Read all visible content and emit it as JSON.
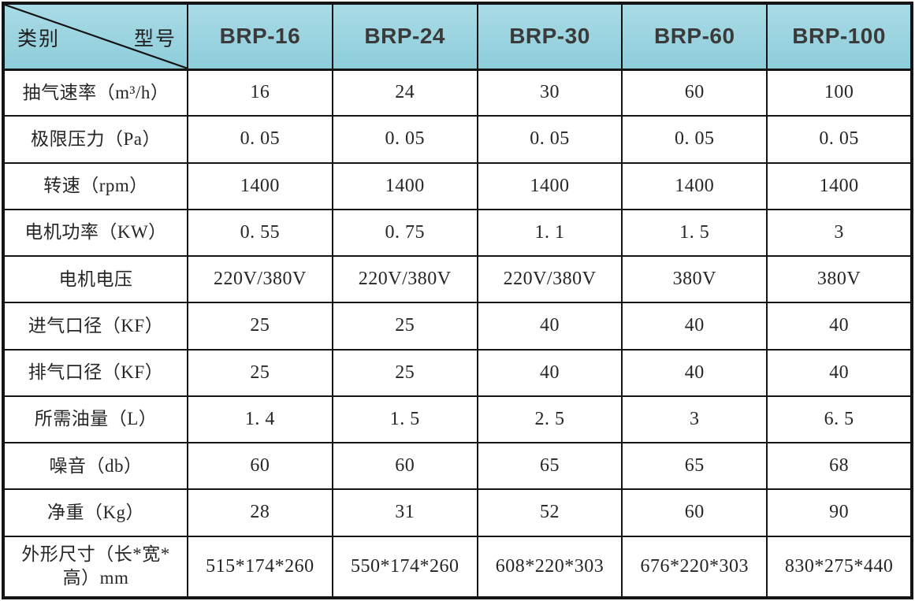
{
  "table": {
    "corner": {
      "category_label": "类别",
      "model_label": "型号"
    },
    "columns": [
      "BRP-16",
      "BRP-24",
      "BRP-30",
      "BRP-60",
      "BRP-100"
    ],
    "rows": [
      {
        "label": "抽气速率（m³/h）",
        "values": [
          "16",
          "24",
          "30",
          "60",
          "100"
        ]
      },
      {
        "label": "极限压力（Pa）",
        "values": [
          "0. 05",
          "0. 05",
          "0. 05",
          "0. 05",
          "0. 05"
        ]
      },
      {
        "label": "转速（rpm）",
        "values": [
          "1400",
          "1400",
          "1400",
          "1400",
          "1400"
        ]
      },
      {
        "label": "电机功率（KW）",
        "values": [
          "0. 55",
          "0. 75",
          "1. 1",
          "1. 5",
          "3"
        ]
      },
      {
        "label": "电机电压",
        "values": [
          "220V/380V",
          "220V/380V",
          "220V/380V",
          "380V",
          "380V"
        ]
      },
      {
        "label": "进气口径（KF）",
        "values": [
          "25",
          "25",
          "40",
          "40",
          "40"
        ]
      },
      {
        "label": "排气口径（KF）",
        "values": [
          "25",
          "25",
          "40",
          "40",
          "40"
        ]
      },
      {
        "label": "所需油量（L）",
        "values": [
          "1. 4",
          "1. 5",
          "2. 5",
          "3",
          "6. 5"
        ]
      },
      {
        "label": "噪音（db）",
        "values": [
          "60",
          "60",
          "65",
          "65",
          "68"
        ]
      },
      {
        "label": "净重（Kg）",
        "values": [
          "28",
          "31",
          "52",
          "60",
          "90"
        ]
      },
      {
        "label": "外形尺寸（长*宽*高）mm",
        "values": [
          "515*174*260",
          "550*174*260",
          "608*220*303",
          "676*220*303",
          "830*275*440"
        ]
      }
    ],
    "colors": {
      "header_bg_top": "#a9dbe6",
      "header_bg_bottom": "#8ecdda",
      "header_text": "#3a3a3a",
      "body_text": "#262626",
      "border": "#141414",
      "body_bg": "#ffffff"
    }
  }
}
